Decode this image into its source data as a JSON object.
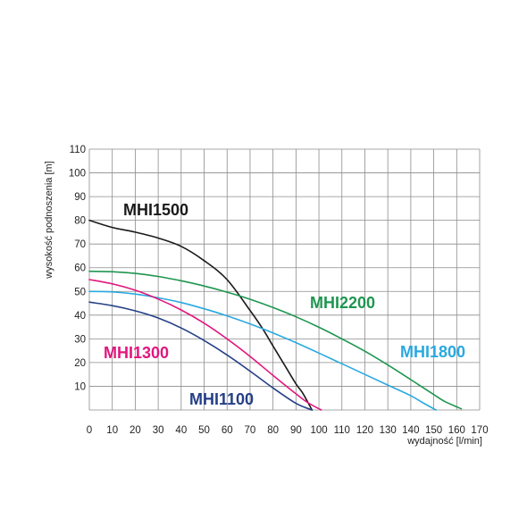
{
  "chart_data": {
    "type": "line",
    "title": "",
    "xlabel": "wydajność [l/min]",
    "ylabel": "wysokość podnoszenia [m]",
    "xlim": [
      0,
      170
    ],
    "ylim": [
      0,
      110
    ],
    "xticks": [
      0,
      10,
      20,
      30,
      40,
      50,
      60,
      70,
      80,
      90,
      100,
      110,
      120,
      130,
      140,
      150,
      160,
      170
    ],
    "yticks": [
      10,
      20,
      30,
      40,
      50,
      60,
      70,
      80,
      90,
      100,
      110
    ],
    "grid": true,
    "legend": "labels placed next to curves",
    "series": [
      {
        "name": "MHI1500",
        "color": "#1a1a1a",
        "x": [
          0,
          10,
          20,
          30,
          40,
          50,
          60,
          70,
          75,
          80,
          85,
          90,
          93,
          97
        ],
        "y": [
          80,
          77,
          75,
          72.5,
          69,
          63,
          55,
          42,
          35,
          27,
          19,
          11,
          7,
          0
        ]
      },
      {
        "name": "MHI2200",
        "color": "#1e9650",
        "x": [
          0,
          10,
          20,
          30,
          40,
          50,
          60,
          70,
          80,
          90,
          100,
          110,
          120,
          130,
          140,
          150,
          155,
          162
        ],
        "y": [
          58.5,
          58.3,
          57.6,
          56.3,
          54.5,
          52.3,
          49.7,
          46.7,
          43.2,
          39.3,
          34.9,
          30,
          24.8,
          19,
          12.8,
          6.5,
          3.5,
          0.5
        ]
      },
      {
        "name": "MHI1800",
        "color": "#29a9e0",
        "x": [
          0,
          10,
          20,
          30,
          40,
          50,
          60,
          70,
          80,
          90,
          100,
          110,
          120,
          130,
          140,
          145,
          151
        ],
        "y": [
          50,
          49.8,
          48.9,
          47.3,
          45.3,
          42.7,
          39.7,
          36.3,
          32.5,
          28.4,
          24,
          19.5,
          15,
          10.5,
          6,
          3.2,
          0
        ]
      },
      {
        "name": "MHI1300",
        "color": "#e2167e",
        "x": [
          0,
          10,
          20,
          30,
          40,
          50,
          60,
          70,
          80,
          90,
          95,
          101
        ],
        "y": [
          55,
          53.2,
          50.5,
          46.8,
          42.2,
          36.6,
          30,
          22.6,
          14.6,
          6.8,
          3.2,
          0
        ]
      },
      {
        "name": "MHI1100",
        "color": "#253f87",
        "x": [
          0,
          10,
          20,
          30,
          40,
          50,
          60,
          70,
          80,
          90,
          97
        ],
        "y": [
          45.5,
          44,
          41.8,
          38.8,
          34.6,
          29.3,
          23.2,
          16.4,
          9.3,
          2.8,
          0
        ]
      }
    ],
    "annotations": [
      {
        "series": "MHI1500",
        "text": "MHI1500"
      },
      {
        "series": "MHI2200",
        "text": "MHI2200"
      },
      {
        "series": "MHI1800",
        "text": "MHI1800"
      },
      {
        "series": "MHI1300",
        "text": "MHI1300"
      },
      {
        "series": "MHI1100",
        "text": "MHI1100"
      }
    ]
  }
}
